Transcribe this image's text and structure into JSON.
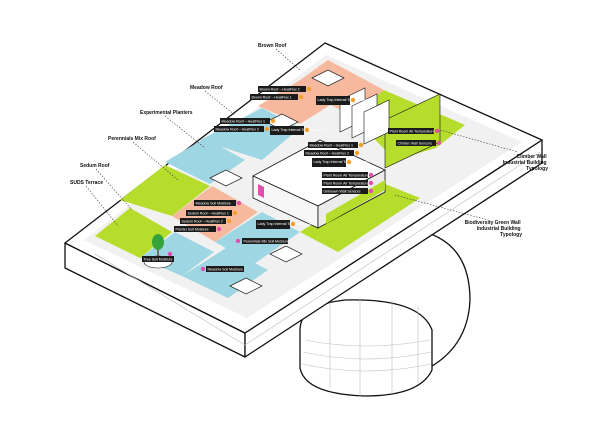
{
  "colors": {
    "green": "#b6dc2c",
    "blue": "#9fd6e3",
    "peach": "#f6b99e",
    "pink": "#e24fae",
    "orange": "#f3a12a",
    "tree": "#33a33a",
    "tag_bg": "#1b1b1b",
    "roof_base": "#f1f1f1"
  },
  "left_labels": {
    "brown_roof": "Brown Roof",
    "meadow_roof": "Meadow Roof",
    "experimental_planters": "Experimental Planters",
    "perennials_mix_roof": "Perennials Mix Roof",
    "sedum_roof": "Sedum Roof",
    "suds_terrace": "SUDS Terrace"
  },
  "right_labels": {
    "climber_wall": [
      "Climber Wall",
      "Industrial Building",
      "Typology"
    ],
    "biodiversity_wall": [
      "Biodiversity Green Wall",
      "Industrial Building",
      "Typology"
    ]
  },
  "tags": {
    "t1": "Brown Roof – HeatFlux 2",
    "t2": "Brown Roof – HeatFlux 1",
    "t3": "Lady Trap Internal Temperature #1",
    "t4": "Meadow Roof – HeatFlux 1",
    "t5": "Meadow Roof – HeatFlux 2",
    "t6": "Lady Trap Internal Temperature #2",
    "t7": "Plant Room Air Temperature",
    "t8": "Meadow Roof – HeatFlux 1",
    "t9": "Meadow Roof – HeatFlux 2",
    "t10": "Lady Trap Internal Temperature #3",
    "t11": "Climber Wall Sensors",
    "t12": "Plant Room Air Temperature",
    "t13": "Plant Room Air Temperature",
    "t14": "Unknown Wall Sensors",
    "t15": "Meadow Soil Moisture",
    "t16": "Sedum Roof – HeatFlux 1",
    "t17": "Sedum Roof – HeatFlux 2",
    "t18": "Planter Soil Moisture",
    "t19": "Lady Trap Internal Temperature #4",
    "t20": "Perennials Mix Soil Moisture",
    "t21": "Tree Soil Moisture",
    "t22": "Meadow Soil Moisture"
  }
}
